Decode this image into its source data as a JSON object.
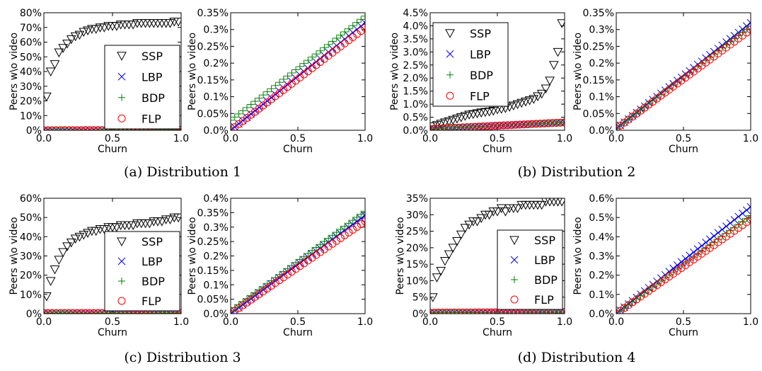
{
  "chart_data": [
    {
      "type": "scatter",
      "panel": "a-left",
      "xlabel": "Churn",
      "ylabel": "Peers w\\o video",
      "xlim": [
        0.0,
        1.0
      ],
      "ylim": [
        0,
        80
      ],
      "xticks": [
        "0.0",
        "0.5",
        "1.0"
      ],
      "yticks": [
        "0%",
        "10%",
        "20%",
        "30%",
        "40%",
        "50%",
        "60%",
        "70%",
        "80%"
      ],
      "legend_position": "bottom-right",
      "series": [
        {
          "name": "SSP",
          "x": [
            0.02,
            0.05,
            0.08,
            0.11,
            0.14,
            0.17,
            0.2,
            0.23,
            0.26,
            0.29,
            0.32,
            0.35,
            0.38,
            0.41,
            0.44,
            0.47,
            0.5,
            0.53,
            0.56,
            0.59,
            0.62,
            0.65,
            0.68,
            0.71,
            0.74,
            0.77,
            0.8,
            0.83,
            0.86,
            0.89,
            0.92,
            0.95,
            0.98
          ],
          "y": [
            23,
            40,
            45,
            53,
            56,
            59,
            62,
            64,
            65,
            67,
            68,
            69,
            69,
            70,
            70,
            71,
            71,
            71,
            72,
            72,
            72,
            72,
            73,
            73,
            73,
            73,
            73,
            73,
            73,
            73,
            73,
            74,
            74
          ]
        },
        {
          "name": "LBP",
          "x_range": [
            0.0,
            1.0
          ],
          "y_range": [
            0.0,
            0.3
          ]
        },
        {
          "name": "BDP",
          "x_range": [
            0.0,
            1.0
          ],
          "y_range": [
            0.03,
            0.34
          ]
        },
        {
          "name": "FLP",
          "x_range": [
            0.0,
            1.0
          ],
          "y_range": [
            0.0,
            0.3
          ]
        }
      ]
    },
    {
      "type": "scatter",
      "panel": "a-right",
      "xlabel": "Churn",
      "ylabel": "Peers w\\o video",
      "xlim": [
        0.0,
        1.0
      ],
      "ylim": [
        0,
        0.35
      ],
      "xticks": [
        "0.0",
        "0.5",
        "1.0"
      ],
      "yticks": [
        "0.0%",
        "0.05%",
        "0.1%",
        "0.15%",
        "0.2%",
        "0.25%",
        "0.3%",
        "0.35%"
      ],
      "series": [
        {
          "name": "LBP",
          "x_range": [
            0.0,
            1.0
          ],
          "y_range": [
            0.0,
            0.32
          ]
        },
        {
          "name": "BDP",
          "x_range": [
            0.0,
            1.0
          ],
          "y_range": [
            0.03,
            0.34
          ]
        },
        {
          "name": "FLP",
          "x_range": [
            0.0,
            1.0
          ],
          "y_range": [
            0.0,
            0.305
          ]
        }
      ]
    },
    {
      "type": "scatter",
      "panel": "b-left",
      "xlabel": "Churn",
      "ylabel": "Peers w\\o video",
      "xlim": [
        0.0,
        1.0
      ],
      "ylim": [
        0,
        4.5
      ],
      "xticks": [
        "0.0",
        "0.5",
        "1.0"
      ],
      "yticks": [
        "0.0%",
        "0.5%",
        "1.0%",
        "1.5%",
        "2.0%",
        "2.5%",
        "3.0%",
        "3.5%",
        "4.0%",
        "4.5%"
      ],
      "legend_position": "top-left",
      "series": [
        {
          "name": "SSP",
          "x": [
            0.02,
            0.05,
            0.08,
            0.11,
            0.14,
            0.17,
            0.2,
            0.23,
            0.26,
            0.29,
            0.32,
            0.35,
            0.38,
            0.41,
            0.44,
            0.47,
            0.5,
            0.53,
            0.56,
            0.59,
            0.62,
            0.65,
            0.68,
            0.71,
            0.74,
            0.77,
            0.8,
            0.83,
            0.86,
            0.89,
            0.92,
            0.95,
            0.98
          ],
          "y": [
            0.15,
            0.2,
            0.25,
            0.3,
            0.35,
            0.4,
            0.45,
            0.5,
            0.55,
            0.6,
            0.62,
            0.65,
            0.68,
            0.7,
            0.72,
            0.75,
            0.8,
            0.82,
            0.85,
            0.9,
            0.95,
            1.0,
            1.05,
            1.1,
            1.15,
            1.2,
            1.3,
            1.4,
            1.6,
            1.9,
            2.5,
            3.0,
            4.1
          ]
        },
        {
          "name": "LBP",
          "x_range": [
            0.0,
            1.0
          ],
          "y_range": [
            0.05,
            0.3
          ]
        },
        {
          "name": "BDP",
          "x_range": [
            0.0,
            1.0
          ],
          "y_range": [
            0.05,
            0.3
          ]
        },
        {
          "name": "FLP",
          "x_range": [
            0.0,
            1.0
          ],
          "y_range": [
            0.05,
            0.3
          ]
        }
      ]
    },
    {
      "type": "scatter",
      "panel": "b-right",
      "xlabel": "Churn",
      "ylabel": "Peers w\\o video",
      "xlim": [
        0.0,
        1.0
      ],
      "ylim": [
        0,
        0.35
      ],
      "xticks": [
        "0.0",
        "0.5",
        "1.0"
      ],
      "yticks": [
        "0.0%",
        "0.05%",
        "0.1%",
        "0.15%",
        "0.2%",
        "0.25%",
        "0.3%",
        "0.35%"
      ],
      "series": [
        {
          "name": "LBP",
          "x_range": [
            0.0,
            1.0
          ],
          "y_range": [
            0.005,
            0.32
          ]
        },
        {
          "name": "BDP",
          "x_range": [
            0.0,
            1.0
          ],
          "y_range": [
            0.005,
            0.31
          ]
        },
        {
          "name": "FLP",
          "x_range": [
            0.0,
            1.0
          ],
          "y_range": [
            0.005,
            0.3
          ]
        }
      ]
    },
    {
      "type": "scatter",
      "panel": "c-left",
      "xlabel": "Churn",
      "ylabel": "Peers w\\o video",
      "xlim": [
        0.0,
        1.0
      ],
      "ylim": [
        0,
        60
      ],
      "xticks": [
        "0.0",
        "0.5",
        "1.0"
      ],
      "yticks": [
        "0%",
        "10%",
        "20%",
        "30%",
        "40%",
        "50%",
        "60%"
      ],
      "legend_position": "bottom-right",
      "series": [
        {
          "name": "SSP",
          "x": [
            0.02,
            0.05,
            0.08,
            0.11,
            0.14,
            0.17,
            0.2,
            0.23,
            0.26,
            0.29,
            0.32,
            0.35,
            0.38,
            0.41,
            0.44,
            0.47,
            0.5,
            0.53,
            0.56,
            0.59,
            0.62,
            0.65,
            0.68,
            0.71,
            0.74,
            0.77,
            0.8,
            0.83,
            0.86,
            0.89,
            0.92,
            0.95,
            0.98
          ],
          "y": [
            9,
            17,
            23,
            28,
            32,
            35,
            37,
            39,
            40,
            41,
            42,
            43,
            43,
            44,
            44,
            45,
            45,
            45,
            46,
            46,
            46,
            46,
            47,
            47,
            47,
            47,
            48,
            48,
            48,
            49,
            49,
            50,
            50
          ]
        },
        {
          "name": "LBP",
          "x_range": [
            0.0,
            1.0
          ],
          "y_range": [
            0.3,
            0.4
          ]
        },
        {
          "name": "BDP",
          "x_range": [
            0.0,
            1.0
          ],
          "y_range": [
            0.3,
            0.4
          ]
        },
        {
          "name": "FLP",
          "x_range": [
            0.0,
            1.0
          ],
          "y_range": [
            0.3,
            0.4
          ]
        }
      ]
    },
    {
      "type": "scatter",
      "panel": "c-right",
      "xlabel": "Churn",
      "ylabel": "Peers w\\o video",
      "xlim": [
        0.0,
        1.0
      ],
      "ylim": [
        0,
        0.4
      ],
      "xticks": [
        "0.0",
        "0.5",
        "1.0"
      ],
      "yticks": [
        "0.0%",
        "0.05%",
        "0.1%",
        "0.15%",
        "0.2%",
        "0.25%",
        "0.3%",
        "0.35%",
        "0.4%"
      ],
      "series": [
        {
          "name": "LBP",
          "x_range": [
            0.0,
            1.0
          ],
          "y_range": [
            0.0,
            0.34
          ]
        },
        {
          "name": "BDP",
          "x_range": [
            0.0,
            1.0
          ],
          "y_range": [
            0.01,
            0.355
          ]
        },
        {
          "name": "FLP",
          "x_range": [
            0.0,
            1.0
          ],
          "y_range": [
            0.0,
            0.32
          ]
        }
      ]
    },
    {
      "type": "scatter",
      "panel": "d-left",
      "xlabel": "Churn",
      "ylabel": "Peers w\\o video",
      "xlim": [
        0.0,
        1.0
      ],
      "ylim": [
        0,
        35
      ],
      "xticks": [
        "0.0",
        "0.5",
        "1.0"
      ],
      "yticks": [
        "0%",
        "5%",
        "10%",
        "15%",
        "20%",
        "25%",
        "30%",
        "35%"
      ],
      "legend_position": "bottom-right",
      "series": [
        {
          "name": "SSP",
          "x": [
            0.02,
            0.05,
            0.08,
            0.11,
            0.14,
            0.17,
            0.2,
            0.23,
            0.26,
            0.29,
            0.32,
            0.35,
            0.38,
            0.41,
            0.44,
            0.47,
            0.5,
            0.53,
            0.56,
            0.59,
            0.62,
            0.65,
            0.68,
            0.71,
            0.74,
            0.77,
            0.8,
            0.83,
            0.86,
            0.89,
            0.92,
            0.95,
            0.98
          ],
          "y": [
            5,
            11,
            13,
            16,
            18,
            20,
            22,
            24,
            26,
            27,
            28,
            28,
            29,
            30,
            30,
            31,
            31,
            32,
            31,
            32,
            32,
            32,
            33,
            33,
            33,
            33,
            33,
            33,
            34,
            34,
            34,
            34,
            34
          ]
        },
        {
          "name": "LBP",
          "x_range": [
            0.0,
            1.0
          ],
          "y_range": [
            0.3,
            0.55
          ]
        },
        {
          "name": "BDP",
          "x_range": [
            0.0,
            1.0
          ],
          "y_range": [
            0.3,
            0.5
          ]
        },
        {
          "name": "FLP",
          "x_range": [
            0.0,
            1.0
          ],
          "y_range": [
            0.3,
            0.5
          ]
        }
      ]
    },
    {
      "type": "scatter",
      "panel": "d-right",
      "xlabel": "Churn",
      "ylabel": "Peers w\\o video",
      "xlim": [
        0.0,
        1.0
      ],
      "ylim": [
        0,
        0.6
      ],
      "xticks": [
        "0.0",
        "0.5",
        "1.0"
      ],
      "yticks": [
        "0.0%",
        "0.1%",
        "0.2%",
        "0.3%",
        "0.4%",
        "0.5%",
        "0.6%"
      ],
      "series": [
        {
          "name": "LBP",
          "x_range": [
            0.0,
            1.0
          ],
          "y_range": [
            0.0,
            0.555
          ]
        },
        {
          "name": "BDP",
          "x_range": [
            0.0,
            1.0
          ],
          "y_range": [
            0.0,
            0.51
          ]
        },
        {
          "name": "FLP",
          "x_range": [
            0.0,
            1.0
          ],
          "y_range": [
            0.0,
            0.49
          ]
        }
      ]
    }
  ],
  "captions": [
    "(a) Distribution 1",
    "(b) Distribution 2",
    "(c) Distribution 3",
    "(d) Distribution 4"
  ],
  "series_colors": {
    "SSP": "#000000",
    "LBP": "#0000ff",
    "BDP": "#008000",
    "FLP": "#ff0000"
  },
  "series_markers": {
    "SSP": "triangle-down",
    "LBP": "x",
    "BDP": "plus",
    "FLP": "circle"
  }
}
